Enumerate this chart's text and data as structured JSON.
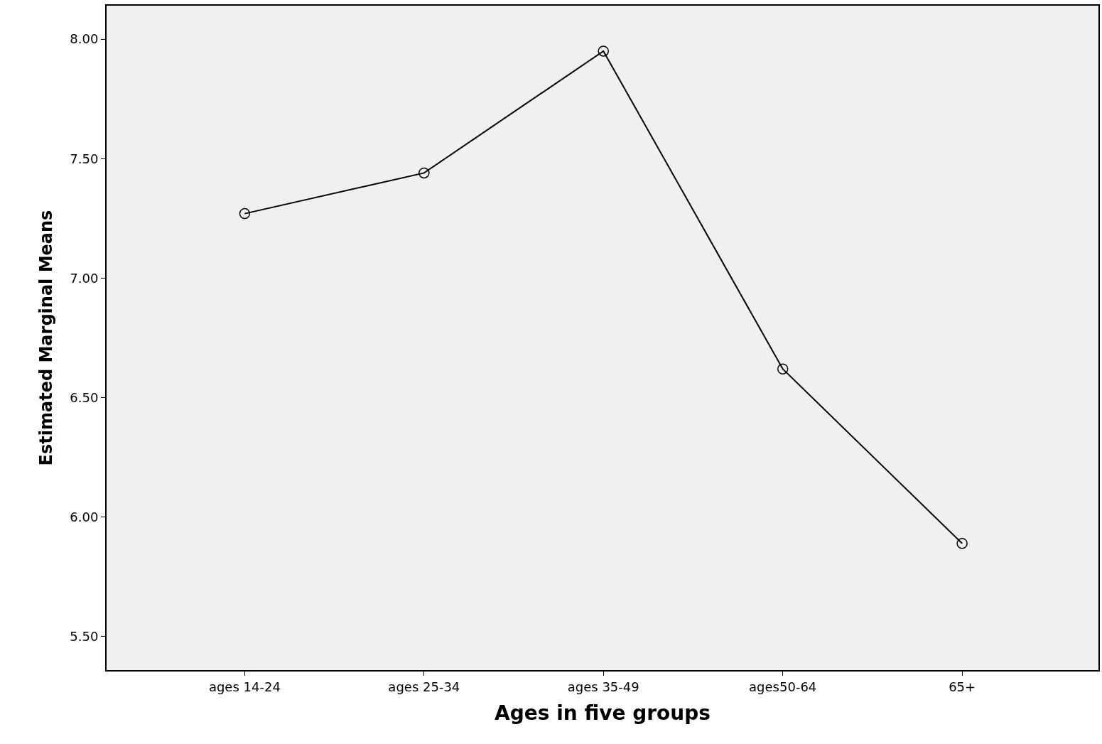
{
  "chart_data": {
    "type": "line",
    "xlabel": "Ages in five groups",
    "ylabel": "Estimated Marginal Means",
    "categories": [
      "ages 14-24",
      "ages 25-34",
      "ages 35-49",
      "ages50-64",
      "65+"
    ],
    "series": [
      {
        "color": "#000000",
        "values": [
          7.27,
          7.44,
          7.95,
          6.62,
          5.89
        ]
      }
    ],
    "ylim": [
      5.36,
      8.14
    ],
    "yticks": [
      {
        "value": 5.5,
        "label": "5.50"
      },
      {
        "value": 6.0,
        "label": "6.00"
      },
      {
        "value": 6.5,
        "label": "6.50"
      },
      {
        "value": 7.0,
        "label": "7.00"
      },
      {
        "value": 7.5,
        "label": "7.50"
      },
      {
        "value": 8.0,
        "label": "8.00"
      }
    ],
    "grid": false,
    "marker": "circle",
    "line_style": "solid"
  }
}
